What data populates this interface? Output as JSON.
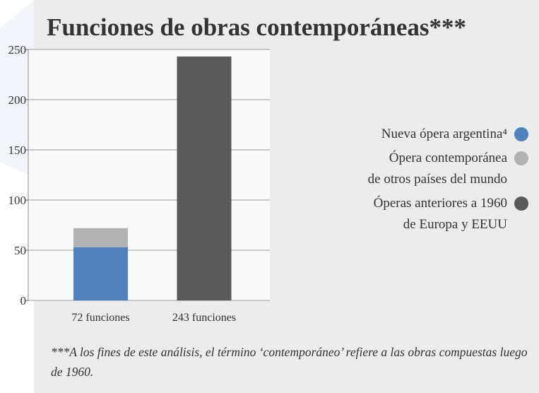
{
  "chart_data": {
    "type": "stacked_bar",
    "title": "Funciones de obras contemporáneas***",
    "categories": [
      "72 funciones",
      "243 funciones"
    ],
    "series": [
      {
        "name": "Nueva ópera argentina⁴",
        "color": "#4f81bd",
        "values": [
          53,
          null
        ]
      },
      {
        "name": "Ópera contemporánea\nde otros países del mundo",
        "color": "#b2b2b2",
        "values": [
          19,
          null
        ]
      },
      {
        "name": "Óperas anteriores a 1960\nde Europa y EEUU",
        "color": "#595959",
        "values": [
          null,
          243
        ]
      }
    ],
    "ylim": [
      0,
      250
    ],
    "yticks": [
      0,
      50,
      100,
      150,
      200,
      250
    ],
    "grid": true,
    "legend": "right",
    "footnote": "***A los fines de este análisis, el término ‘contemporáneo’ refiere a las obras compuestas luego de 1960."
  }
}
